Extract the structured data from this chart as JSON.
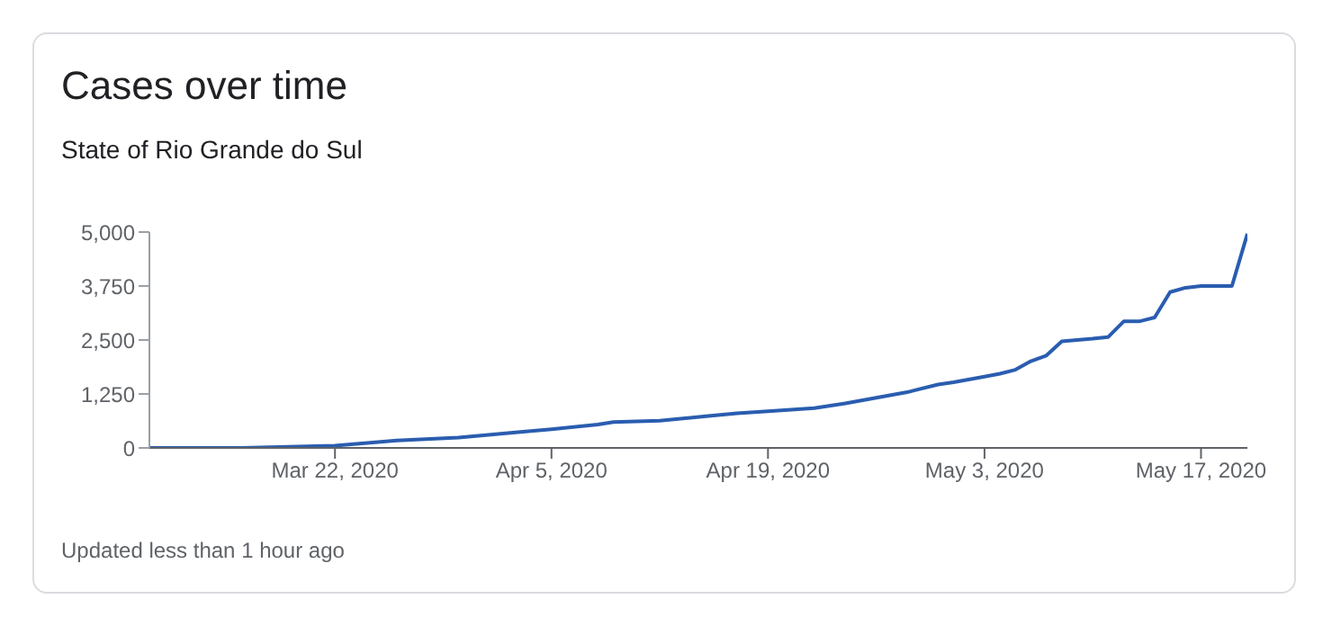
{
  "chart_data": {
    "type": "line",
    "title": "Cases over time",
    "subtitle": "State of Rio Grande do Sul",
    "x": [
      "2020-03-10",
      "2020-03-16",
      "2020-03-22",
      "2020-03-26",
      "2020-03-30",
      "2020-04-03",
      "2020-04-05",
      "2020-04-08",
      "2020-04-09",
      "2020-04-12",
      "2020-04-15",
      "2020-04-17",
      "2020-04-19",
      "2020-04-22",
      "2020-04-24",
      "2020-04-26",
      "2020-04-28",
      "2020-04-30",
      "2020-05-01",
      "2020-05-03",
      "2020-05-04",
      "2020-05-05",
      "2020-05-06",
      "2020-05-07",
      "2020-05-08",
      "2020-05-10",
      "2020-05-11",
      "2020-05-12",
      "2020-05-13",
      "2020-05-14",
      "2020-05-15",
      "2020-05-16",
      "2020-05-17",
      "2020-05-19",
      "2020-05-20"
    ],
    "series": [
      {
        "color": "#2a5db0",
        "values": [
          0,
          0,
          50,
          170,
          240,
          370,
          430,
          540,
          600,
          630,
          735,
          800,
          850,
          920,
          1030,
          1160,
          1290,
          1470,
          1520,
          1650,
          1720,
          1810,
          2010,
          2140,
          2470,
          2530,
          2570,
          2930,
          2930,
          3020,
          3610,
          3710,
          3750,
          3750,
          4960
        ]
      }
    ],
    "xlim": [
      "2020-03-10",
      "2020-05-20"
    ],
    "xticks": [
      {
        "value": "2020-03-22",
        "label": "Mar 22, 2020"
      },
      {
        "value": "2020-04-05",
        "label": "Apr 5, 2020"
      },
      {
        "value": "2020-04-19",
        "label": "Apr 19, 2020"
      },
      {
        "value": "2020-05-03",
        "label": "May 3, 2020"
      },
      {
        "value": "2020-05-17",
        "label": "May 17, 2020"
      }
    ],
    "ylim": [
      0,
      5000
    ],
    "yticks": [
      {
        "value": 0,
        "label": "0"
      },
      {
        "value": 1250,
        "label": "1,250"
      },
      {
        "value": 2500,
        "label": "2,500"
      },
      {
        "value": 3750,
        "label": "3,750"
      },
      {
        "value": 5000,
        "label": "5,000"
      }
    ],
    "grid": false,
    "legend": false,
    "marker": "none",
    "line_style": "solid",
    "annotations": [
      "Updated less than 1 hour ago"
    ]
  }
}
